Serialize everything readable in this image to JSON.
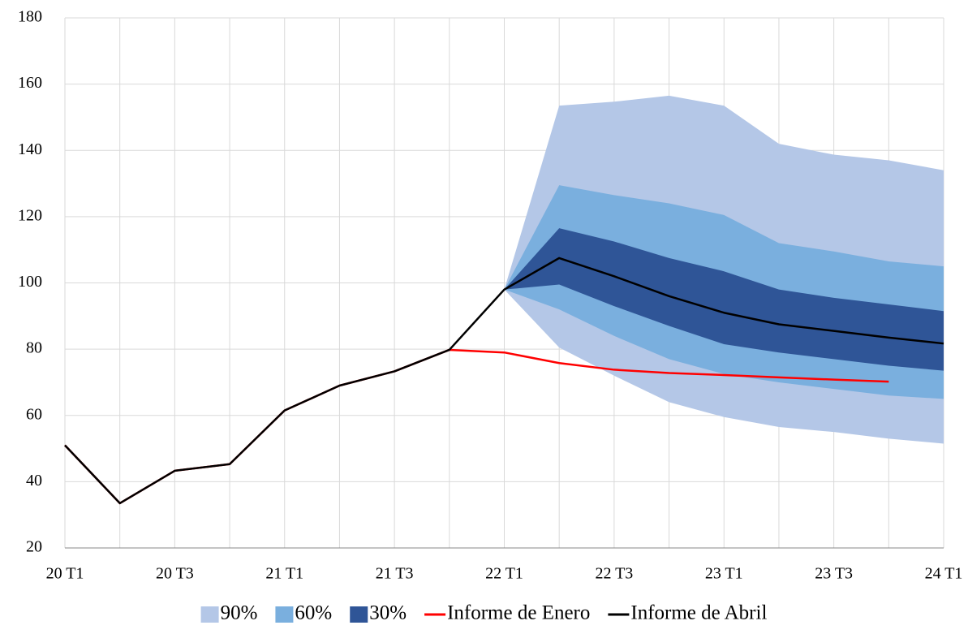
{
  "chart_data": {
    "type": "fan",
    "categories": [
      "20 T1",
      null,
      "20 T3",
      null,
      "21 T1",
      null,
      "21 T3",
      null,
      "22 T1",
      null,
      "22 T3",
      null,
      "23 T1",
      null,
      "23 T3",
      null,
      "24 T1"
    ],
    "ylim": [
      20,
      180
    ],
    "yticks": [
      20,
      40,
      60,
      80,
      100,
      120,
      140,
      160,
      180
    ],
    "grid": true,
    "series": [
      {
        "name": "90%",
        "kind": "band",
        "color": "#b4c7e7",
        "upper": [
          null,
          null,
          null,
          null,
          null,
          null,
          null,
          null,
          98,
          153.5,
          154.7,
          156.5,
          153.5,
          142,
          138.7,
          137,
          134
        ],
        "lower": [
          null,
          null,
          null,
          null,
          null,
          null,
          null,
          null,
          98,
          80.5,
          72,
          64,
          59.5,
          56.5,
          55,
          53,
          51.5
        ]
      },
      {
        "name": "60%",
        "kind": "band",
        "color": "#7aafde",
        "upper": [
          null,
          null,
          null,
          null,
          null,
          null,
          null,
          null,
          98,
          129.5,
          126.5,
          124,
          120.5,
          112,
          109.5,
          106.5,
          105
        ],
        "lower": [
          null,
          null,
          null,
          null,
          null,
          null,
          null,
          null,
          98,
          92,
          84,
          77,
          72.5,
          70,
          68,
          66,
          65
        ]
      },
      {
        "name": "30%",
        "kind": "band",
        "color": "#2f5597",
        "upper": [
          null,
          null,
          null,
          null,
          null,
          null,
          null,
          null,
          98,
          116.5,
          112.5,
          107.5,
          103.5,
          98,
          95.5,
          93.5,
          91.5
        ],
        "lower": [
          null,
          null,
          null,
          null,
          null,
          null,
          null,
          null,
          98,
          99.5,
          93,
          87,
          81.5,
          79,
          77,
          75,
          73.5
        ]
      },
      {
        "name": "Informe de Enero",
        "kind": "line",
        "color": "#ff0000",
        "values": [
          51,
          33.5,
          43.3,
          45.3,
          61.5,
          69,
          73.3,
          79.8,
          79,
          75.8,
          73.8,
          72.8,
          72.2,
          71.5,
          70.8,
          70.2,
          null
        ]
      },
      {
        "name": "Informe de Abril",
        "kind": "line",
        "color": "#000000",
        "values": [
          51,
          33.5,
          43.3,
          45.3,
          61.5,
          69,
          73.3,
          79.8,
          98,
          107.5,
          102,
          96,
          91,
          87.5,
          85.5,
          83.5,
          81.7
        ]
      }
    ]
  }
}
